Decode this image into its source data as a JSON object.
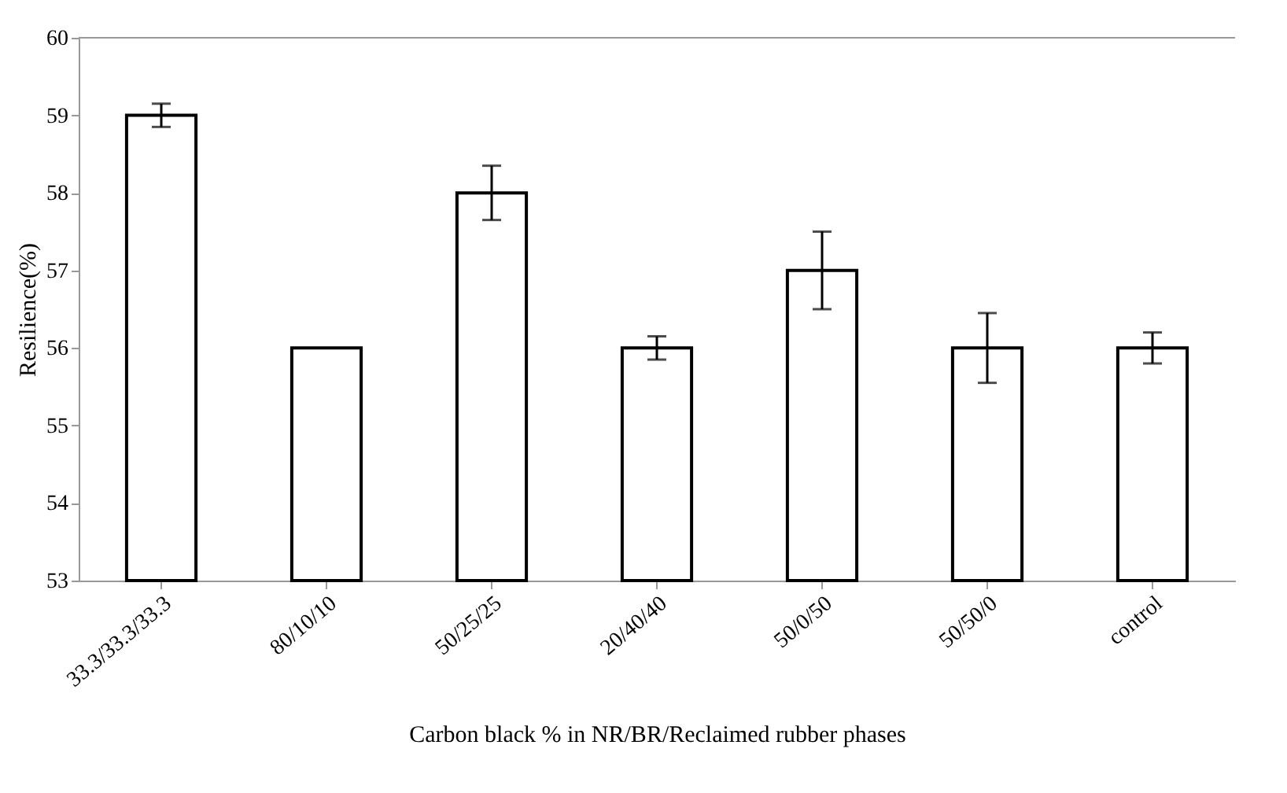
{
  "chart_data": {
    "type": "bar",
    "xlabel": "Carbon black % in NR/BR/Reclaimed rubber phases",
    "ylabel": "Resilience(%)",
    "categories": [
      "33.3/33.3/33.3",
      "80/10/10",
      "50/25/25",
      "20/40/40",
      "50/0/50",
      "50/50/0",
      "control"
    ],
    "values": [
      59,
      56,
      58,
      56,
      57,
      56,
      56
    ],
    "errors": [
      0.15,
      null,
      0.35,
      0.15,
      0.5,
      0.45,
      0.2
    ],
    "color": "#ffffff",
    "ylim": [
      53,
      60
    ],
    "yticks": [
      53,
      54,
      55,
      56,
      57,
      58,
      59,
      60
    ],
    "grid": false
  }
}
